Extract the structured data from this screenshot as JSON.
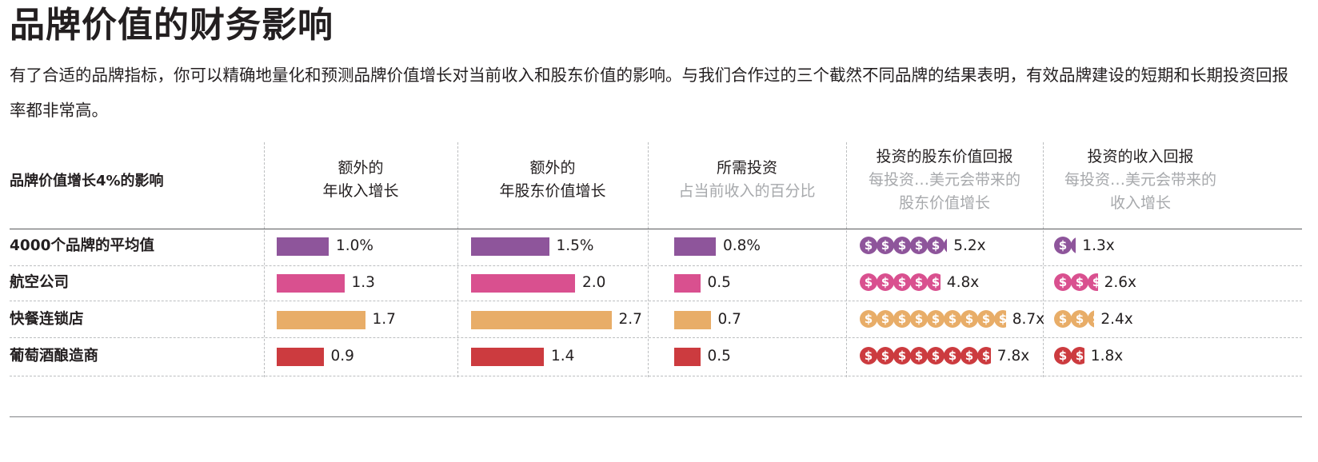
{
  "title": "品牌价值的财务影响",
  "intro": "有了合适的品牌指标，你可以精确地量化和预测品牌价值增长对当前收入和股东价值的影响。与我们合作过的三个截然不同品牌的结果表明，有效品牌建设的短期和长期投资回报率都非常高。",
  "header": {
    "row_label": "品牌价值增长4%的影响",
    "col1": [
      "额外的",
      "年收入增长"
    ],
    "col2": [
      "额外的",
      "年股东价值增长"
    ],
    "col3": {
      "line1": "所需投资",
      "line2": "占当前收入的百分比"
    },
    "col4": {
      "line1": "投资的股东价值回报",
      "line2": "每投资…美元会带来的",
      "line3": "股东价值增长"
    },
    "col5": {
      "line1": "投资的收入回报",
      "line2": "每投资…美元会带来的",
      "line3": "收入增长"
    }
  },
  "colors": {
    "purple": "#8e559b",
    "pink": "#d9508f",
    "orange": "#e8ad68",
    "red": "#cc3b3f"
  },
  "icon": "dollar-coin-icon",
  "chart_data": {
    "type": "table",
    "rows": [
      {
        "label": "4000个品牌的平均值",
        "color": "purple",
        "revenue": 1.0,
        "revenue_label": "1.0%",
        "shareholder": 1.5,
        "shareholder_label": "1.5%",
        "investment": 0.8,
        "investment_label": "0.8%",
        "shareholder_return": 5.2,
        "shareholder_return_label": "5.2x",
        "revenue_return": 1.3,
        "revenue_return_label": "1.3x"
      },
      {
        "label": "航空公司",
        "color": "pink",
        "revenue": 1.3,
        "revenue_label": "1.3",
        "shareholder": 2.0,
        "shareholder_label": "2.0",
        "investment": 0.5,
        "investment_label": "0.5",
        "shareholder_return": 4.8,
        "shareholder_return_label": "4.8x",
        "revenue_return": 2.6,
        "revenue_return_label": "2.6x"
      },
      {
        "label": "快餐连锁店",
        "color": "orange",
        "revenue": 1.7,
        "revenue_label": "1.7",
        "shareholder": 2.7,
        "shareholder_label": "2.7",
        "investment": 0.7,
        "investment_label": "0.7",
        "shareholder_return": 8.7,
        "shareholder_return_label": "8.7x",
        "revenue_return": 2.4,
        "revenue_return_label": "2.4x"
      },
      {
        "label": "葡萄酒酿造商",
        "color": "red",
        "revenue": 0.9,
        "revenue_label": "0.9",
        "shareholder": 1.4,
        "shareholder_label": "1.4",
        "investment": 0.5,
        "investment_label": "0.5",
        "shareholder_return": 7.8,
        "shareholder_return_label": "7.8x",
        "revenue_return": 1.8,
        "revenue_return_label": "1.8x"
      }
    ]
  }
}
